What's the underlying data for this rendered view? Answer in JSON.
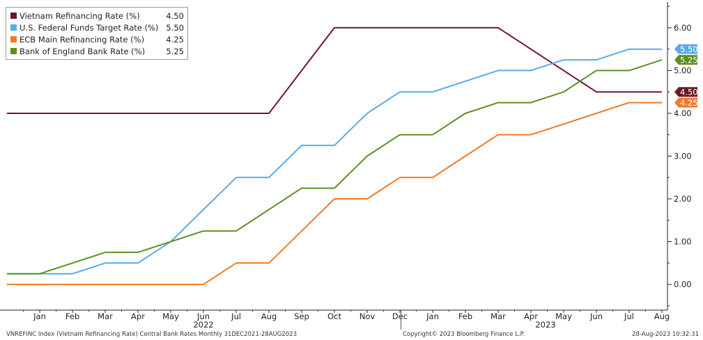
{
  "chart_data": {
    "type": "line",
    "x": [
      "Dec 2021",
      "Jan 2022",
      "Feb 2022",
      "Mar 2022",
      "Apr 2022",
      "May 2022",
      "Jun 2022",
      "Jul 2022",
      "Aug 2022",
      "Sep 2022",
      "Oct 2022",
      "Nov 2022",
      "Dec 2022",
      "Jan 2023",
      "Feb 2023",
      "Mar 2023",
      "Apr 2023",
      "May 2023",
      "Jun 2023",
      "Jul 2023",
      "Aug 2023"
    ],
    "series": [
      {
        "name": "Vietnam Refinancing Rate (%)",
        "last": "4.50",
        "color": "#6b1826",
        "values": [
          4.0,
          4.0,
          4.0,
          4.0,
          4.0,
          4.0,
          4.0,
          4.0,
          4.0,
          5.0,
          6.0,
          6.0,
          6.0,
          6.0,
          6.0,
          6.0,
          5.5,
          5.0,
          4.5,
          4.5,
          4.5
        ]
      },
      {
        "name": "U.S. Federal Funds Target Rate (%)",
        "last": "5.50",
        "color": "#5aaae6",
        "values": [
          0.25,
          0.25,
          0.25,
          0.5,
          0.5,
          1.0,
          1.75,
          2.5,
          2.5,
          3.25,
          3.25,
          4.0,
          4.5,
          4.5,
          4.75,
          5.0,
          5.0,
          5.25,
          5.25,
          5.5,
          5.5
        ]
      },
      {
        "name": "ECB Main Refinancing Rate (%)",
        "last": "4.25",
        "color": "#f07a28",
        "values": [
          0.0,
          0.0,
          0.0,
          0.0,
          0.0,
          0.0,
          0.0,
          0.5,
          0.5,
          1.25,
          2.0,
          2.0,
          2.5,
          2.5,
          3.0,
          3.5,
          3.5,
          3.75,
          4.0,
          4.25,
          4.25
        ]
      },
      {
        "name": "Bank of England Bank Rate (%)",
        "last": "5.25",
        "color": "#5c8f22",
        "values": [
          0.25,
          0.25,
          0.5,
          0.75,
          0.75,
          1.0,
          1.25,
          1.25,
          1.75,
          2.25,
          2.25,
          3.0,
          3.5,
          3.5,
          4.0,
          4.25,
          4.25,
          4.5,
          5.0,
          5.0,
          5.25
        ]
      }
    ],
    "y_ticks": [
      "0.00",
      "1.00",
      "2.00",
      "3.00",
      "4.00",
      "5.00",
      "6.00"
    ],
    "ylim": [
      -0.6,
      6.6
    ],
    "x_tick_labels": [
      "Jan",
      "Feb",
      "Mar",
      "Apr",
      "May",
      "Jun",
      "Jul",
      "Aug",
      "Sep",
      "Oct",
      "Nov",
      "Dec",
      "Jan",
      "Feb",
      "Mar",
      "Apr",
      "May",
      "Jun",
      "Jul",
      "Aug"
    ],
    "year_labels": [
      {
        "label": "2022",
        "at": "Jun"
      },
      {
        "label": "2023",
        "at": "May"
      }
    ],
    "end_labels": [
      {
        "series": 1,
        "text": "5.50",
        "color": "#5aaae6",
        "text_color": "#ffffff"
      },
      {
        "series": 3,
        "text": "5.25",
        "color": "#5c8f22",
        "text_color": "#ffffff"
      },
      {
        "series": 0,
        "text": "4.50",
        "color": "#6b1826",
        "text_color": "#ffffff"
      },
      {
        "series": 2,
        "text": "4.25",
        "color": "#f07a28",
        "text_color": "#ffffff"
      }
    ],
    "grid": false,
    "legend_position": "top-left"
  },
  "footer": {
    "left": "VNREFINC Index (Vietnam Refinancing Rate) Central Bank Rates  Monthly 31DEC2021-28AUG2023",
    "center": "Copyright© 2023 Bloomberg Finance L.P.",
    "right": "28-Aug-2023 10:32:31"
  }
}
